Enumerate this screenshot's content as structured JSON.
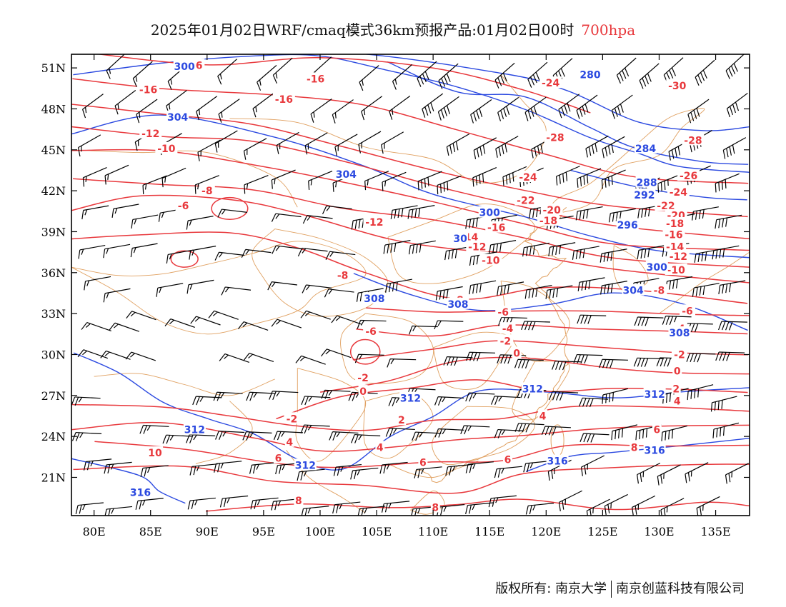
{
  "title": {
    "main": "2025年01月02日WRF/cmaq模式36km预报产品:01月02日00时",
    "level": "700hpa"
  },
  "colors": {
    "temperature": "#e8383c",
    "geopotential": "#2b49e0",
    "boundary": "#e0a060",
    "wind": "#000000",
    "frame": "#000000"
  },
  "axes": {
    "lat_ticks": [
      "51N",
      "48N",
      "45N",
      "42N",
      "39N",
      "36N",
      "33N",
      "30N",
      "27N",
      "24N",
      "21N"
    ],
    "lon_ticks": [
      "80E",
      "85E",
      "90E",
      "95E",
      "100E",
      "105E",
      "110E",
      "115E",
      "120E",
      "125E",
      "130E",
      "135E"
    ],
    "lon_range": [
      78,
      138
    ],
    "lat_range": [
      18.2,
      52.0
    ]
  },
  "labels": {
    "temperature": [
      {
        "text": "-16",
        "lon": 88.8,
        "lat": 51.2
      },
      {
        "text": "-16",
        "lon": 84.8,
        "lat": 49.4
      },
      {
        "text": "-16",
        "lon": 96.8,
        "lat": 48.7
      },
      {
        "text": "-16",
        "lon": 99.6,
        "lat": 50.2
      },
      {
        "text": "-14",
        "lon": 87.4,
        "lat": 47.4
      },
      {
        "text": "-12",
        "lon": 85.0,
        "lat": 46.2
      },
      {
        "text": "-10",
        "lon": 86.4,
        "lat": 45.1
      },
      {
        "text": "-8",
        "lon": 90.0,
        "lat": 42.0
      },
      {
        "text": "-6",
        "lon": 87.9,
        "lat": 40.9
      },
      {
        "text": "-12",
        "lon": 104.8,
        "lat": 39.7
      },
      {
        "text": "-24",
        "lon": 120.4,
        "lat": 49.9
      },
      {
        "text": "-28",
        "lon": 120.8,
        "lat": 45.9
      },
      {
        "text": "-24",
        "lon": 118.4,
        "lat": 43.0
      },
      {
        "text": "-22",
        "lon": 118.2,
        "lat": 41.3
      },
      {
        "text": "-20",
        "lon": 120.5,
        "lat": 40.6
      },
      {
        "text": "-18",
        "lon": 120.2,
        "lat": 39.8
      },
      {
        "text": "-16",
        "lon": 115.6,
        "lat": 39.3
      },
      {
        "text": "-14",
        "lon": 113.2,
        "lat": 38.6
      },
      {
        "text": "-12",
        "lon": 113.9,
        "lat": 37.9
      },
      {
        "text": "-10",
        "lon": 115.1,
        "lat": 36.9
      },
      {
        "text": "-8",
        "lon": 102.0,
        "lat": 35.8
      },
      {
        "text": "-8",
        "lon": 112.2,
        "lat": 34.0
      },
      {
        "text": "-6",
        "lon": 116.2,
        "lat": 33.1
      },
      {
        "text": "-6",
        "lon": 104.5,
        "lat": 31.7
      },
      {
        "text": "-4",
        "lon": 116.6,
        "lat": 31.9
      },
      {
        "text": "-2",
        "lon": 116.4,
        "lat": 31.0
      },
      {
        "text": "0",
        "lon": 117.4,
        "lat": 30.1
      },
      {
        "text": "-2",
        "lon": 103.8,
        "lat": 28.3
      },
      {
        "text": "0",
        "lon": 103.8,
        "lat": 27.3
      },
      {
        "text": "-2",
        "lon": 97.5,
        "lat": 25.3
      },
      {
        "text": "2",
        "lon": 107.2,
        "lat": 25.2
      },
      {
        "text": "4",
        "lon": 97.3,
        "lat": 23.6
      },
      {
        "text": "4",
        "lon": 105.3,
        "lat": 23.2
      },
      {
        "text": "4",
        "lon": 119.7,
        "lat": 25.5
      },
      {
        "text": "6",
        "lon": 96.3,
        "lat": 22.4
      },
      {
        "text": "6",
        "lon": 109.1,
        "lat": 22.1
      },
      {
        "text": "6",
        "lon": 116.6,
        "lat": 22.3
      },
      {
        "text": "8",
        "lon": 98.1,
        "lat": 19.3
      },
      {
        "text": "8",
        "lon": 110.2,
        "lat": 18.8
      },
      {
        "text": "10",
        "lon": 85.4,
        "lat": 22.8
      },
      {
        "text": "-30",
        "lon": 131.6,
        "lat": 49.7
      },
      {
        "text": "-28",
        "lon": 133.0,
        "lat": 45.7
      },
      {
        "text": "-26",
        "lon": 132.6,
        "lat": 43.1
      },
      {
        "text": "-24",
        "lon": 131.7,
        "lat": 41.9
      },
      {
        "text": "-22",
        "lon": 130.6,
        "lat": 40.9
      },
      {
        "text": "-20",
        "lon": 131.5,
        "lat": 40.2
      },
      {
        "text": "-18",
        "lon": 131.4,
        "lat": 39.6
      },
      {
        "text": "-16",
        "lon": 131.3,
        "lat": 38.8
      },
      {
        "text": "-14",
        "lon": 131.4,
        "lat": 37.9
      },
      {
        "text": "-12",
        "lon": 131.7,
        "lat": 37.2
      },
      {
        "text": "-10",
        "lon": 131.5,
        "lat": 36.2
      },
      {
        "text": "-8",
        "lon": 130.0,
        "lat": 34.7
      },
      {
        "text": "-6",
        "lon": 132.5,
        "lat": 33.2
      },
      {
        "text": "-4",
        "lon": 131.8,
        "lat": 31.9
      },
      {
        "text": "-2",
        "lon": 131.8,
        "lat": 30.0
      },
      {
        "text": "0",
        "lon": 131.6,
        "lat": 28.8
      },
      {
        "text": "2",
        "lon": 131.5,
        "lat": 27.5
      },
      {
        "text": "4",
        "lon": 131.6,
        "lat": 26.6
      },
      {
        "text": "6",
        "lon": 129.8,
        "lat": 24.5
      },
      {
        "text": "8",
        "lon": 127.8,
        "lat": 23.2
      }
    ],
    "geopotential": [
      {
        "text": "300",
        "lon": 88.0,
        "lat": 51.1
      },
      {
        "text": "304",
        "lon": 87.4,
        "lat": 47.4
      },
      {
        "text": "280",
        "lon": 123.9,
        "lat": 50.5
      },
      {
        "text": "284",
        "lon": 128.8,
        "lat": 45.1
      },
      {
        "text": "288",
        "lon": 128.9,
        "lat": 42.6
      },
      {
        "text": "292",
        "lon": 128.7,
        "lat": 41.7
      },
      {
        "text": "296",
        "lon": 127.2,
        "lat": 39.5
      },
      {
        "text": "300",
        "lon": 115.0,
        "lat": 40.4
      },
      {
        "text": "304",
        "lon": 102.3,
        "lat": 43.2
      },
      {
        "text": "30",
        "lon": 112.4,
        "lat": 38.5
      },
      {
        "text": "300",
        "lon": 129.8,
        "lat": 36.4
      },
      {
        "text": "304",
        "lon": 127.7,
        "lat": 34.7
      },
      {
        "text": "308",
        "lon": 104.8,
        "lat": 34.1
      },
      {
        "text": "308",
        "lon": 112.2,
        "lat": 33.7
      },
      {
        "text": "308",
        "lon": 131.8,
        "lat": 31.6
      },
      {
        "text": "312",
        "lon": 118.8,
        "lat": 27.5
      },
      {
        "text": "312",
        "lon": 108.0,
        "lat": 26.8
      },
      {
        "text": "312",
        "lon": 129.6,
        "lat": 27.1
      },
      {
        "text": "312",
        "lon": 88.9,
        "lat": 24.5
      },
      {
        "text": "312",
        "lon": 98.7,
        "lat": 21.9
      },
      {
        "text": "316",
        "lon": 121.0,
        "lat": 22.2
      },
      {
        "text": "316",
        "lon": 129.6,
        "lat": 23.0
      },
      {
        "text": "316",
        "lon": 84.1,
        "lat": 19.9
      }
    ]
  },
  "credits": {
    "left": "版权所有: 南京大学",
    "right": "南京创蓝科技有限公司"
  }
}
